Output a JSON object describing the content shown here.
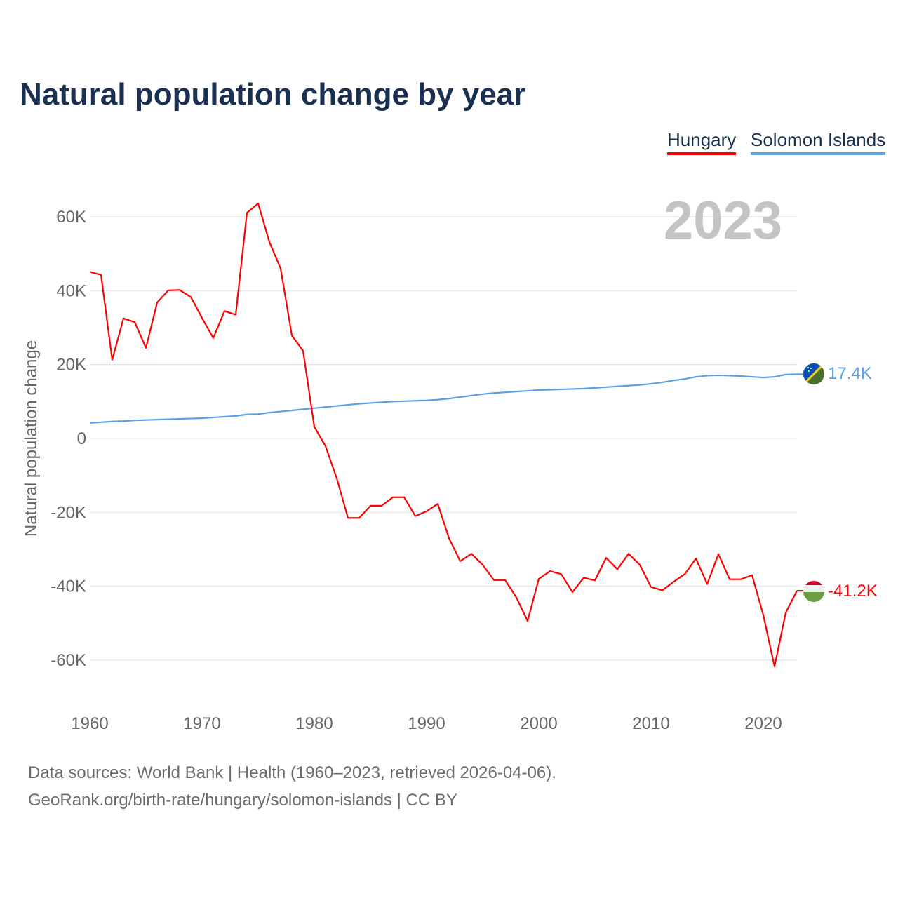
{
  "title": "Natural population change by year",
  "legend": [
    {
      "name": "Hungary",
      "color": "#ff0000"
    },
    {
      "name": "Solomon Islands",
      "color": "#5aa0e6"
    }
  ],
  "year_label": "2023",
  "end_labels": {
    "hungary": "-41.2K",
    "solomon": "17.4K"
  },
  "footer": {
    "line1": "Data sources: World Bank | Health (1960–2023, retrieved 2026-04-06).",
    "line2": "GeoRank.org/birth-rate/hungary/solomon-islands | CC BY"
  },
  "chart_data": {
    "type": "line",
    "title": "Natural population change by year",
    "xlabel": "",
    "ylabel": "Natural population change",
    "xlim": [
      1960,
      2023
    ],
    "ylim": [
      -70000,
      70000
    ],
    "x_ticks": [
      1960,
      1970,
      1980,
      1990,
      2000,
      2010,
      2020
    ],
    "y_ticks": [
      {
        "v": 60000,
        "label": "60K"
      },
      {
        "v": 40000,
        "label": "40K"
      },
      {
        "v": 20000,
        "label": "20K"
      },
      {
        "v": 0,
        "label": "0"
      },
      {
        "v": -20000,
        "label": "-20K"
      },
      {
        "v": -40000,
        "label": "-40K"
      },
      {
        "v": -60000,
        "label": "-60K"
      }
    ],
    "grid": true,
    "legend_position": "top-right",
    "x": [
      1960,
      1961,
      1962,
      1963,
      1964,
      1965,
      1966,
      1967,
      1968,
      1969,
      1970,
      1971,
      1972,
      1973,
      1974,
      1975,
      1976,
      1977,
      1978,
      1979,
      1980,
      1981,
      1982,
      1983,
      1984,
      1985,
      1986,
      1987,
      1988,
      1989,
      1990,
      1991,
      1992,
      1993,
      1994,
      1995,
      1996,
      1997,
      1998,
      1999,
      2000,
      2001,
      2002,
      2003,
      2004,
      2005,
      2006,
      2007,
      2008,
      2009,
      2010,
      2011,
      2012,
      2013,
      2014,
      2015,
      2016,
      2017,
      2018,
      2019,
      2020,
      2021,
      2022,
      2023
    ],
    "series": [
      {
        "name": "Hungary",
        "color": "#ff0000",
        "values": [
          45100,
          44300,
          21300,
          32500,
          31500,
          24500,
          36800,
          40100,
          40200,
          38300,
          32600,
          27200,
          34500,
          33500,
          61100,
          63600,
          53200,
          46000,
          27900,
          23700,
          3200,
          -2100,
          -10800,
          -21500,
          -21500,
          -18200,
          -18200,
          -15900,
          -15900,
          -21000,
          -19700,
          -17700,
          -27000,
          -33200,
          -31200,
          -34200,
          -38300,
          -38300,
          -43000,
          -49400,
          -38000,
          -35900,
          -36700,
          -41600,
          -37700,
          -38400,
          -32300,
          -35400,
          -31200,
          -34200,
          -40200,
          -41100,
          -38800,
          -36700,
          -32500,
          -39400,
          -31300,
          -38100,
          -38100,
          -37000,
          -47800,
          -61700,
          -47100,
          -41200
        ]
      },
      {
        "name": "Solomon Islands",
        "color": "#5aa0e6",
        "values": [
          4200,
          4400,
          4600,
          4700,
          4900,
          5000,
          5100,
          5200,
          5300,
          5400,
          5500,
          5700,
          5900,
          6100,
          6500,
          6600,
          7000,
          7300,
          7600,
          7900,
          8200,
          8500,
          8800,
          9100,
          9400,
          9600,
          9800,
          10000,
          10100,
          10200,
          10300,
          10500,
          10800,
          11200,
          11600,
          12000,
          12300,
          12500,
          12700,
          12900,
          13100,
          13200,
          13300,
          13400,
          13500,
          13700,
          13900,
          14100,
          14300,
          14500,
          14800,
          15200,
          15700,
          16100,
          16700,
          17000,
          17100,
          17000,
          16900,
          16700,
          16500,
          16700,
          17300,
          17400
        ]
      }
    ]
  }
}
